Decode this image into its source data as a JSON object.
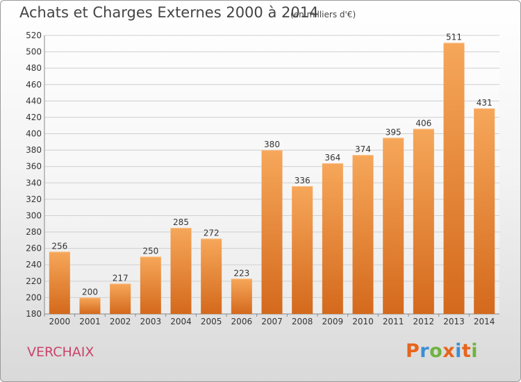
{
  "chart_data": {
    "type": "bar",
    "title": "Achats et Charges Externes 2000 à 2014",
    "subtitle": "(en milliers d'€)",
    "categories": [
      "2000",
      "2001",
      "2002",
      "2003",
      "2004",
      "2005",
      "2006",
      "2007",
      "2008",
      "2009",
      "2010",
      "2011",
      "2012",
      "2013",
      "2014"
    ],
    "values": [
      256,
      200,
      217,
      250,
      285,
      272,
      223,
      380,
      336,
      364,
      374,
      395,
      406,
      511,
      431
    ],
    "ylim": [
      180,
      520
    ],
    "yticks": [
      180,
      200,
      220,
      240,
      260,
      280,
      300,
      320,
      340,
      360,
      380,
      400,
      420,
      440,
      460,
      480,
      500,
      520
    ],
    "grid": true,
    "bar_color": "#f0872a",
    "legend": "none"
  },
  "commune": "VERCHAIX",
  "logo": {
    "letters": [
      "P",
      "r",
      "o",
      "x",
      "i",
      "t",
      "i"
    ],
    "colors": [
      "#e8641b",
      "#3a8fd6",
      "#6fb43f",
      "#e8641b",
      "#3a8fd6",
      "#e8641b",
      "#6fb43f"
    ]
  }
}
